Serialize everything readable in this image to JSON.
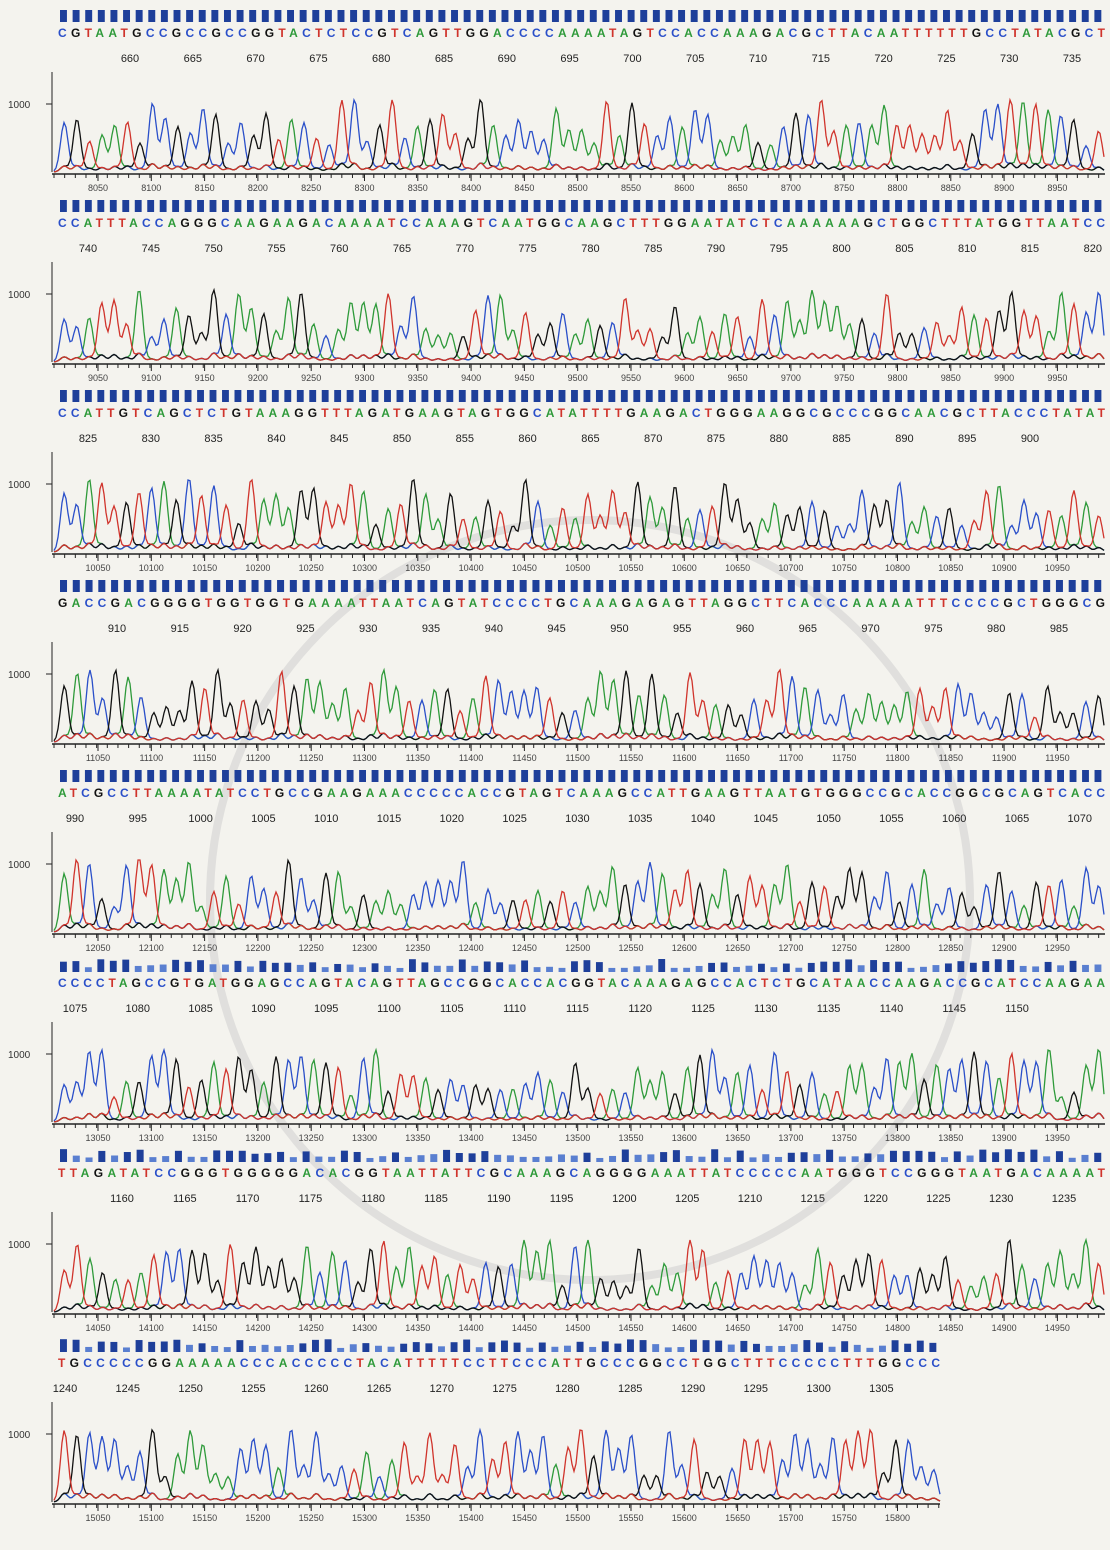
{
  "panels": [
    {
      "sequence": "CGTAATGCCGCCGCCGGTACTCTCCGTCAGTTGGACCCCAAAATAGTCCACCAAAGACGCTTACAATTTTTTGCCTATACGCT",
      "positions": [
        660,
        665,
        670,
        675,
        680,
        685,
        690,
        695,
        700,
        705,
        710,
        715,
        720,
        725,
        730,
        735
      ],
      "y_tick": 1000,
      "scan_ticks": [
        8050,
        8100,
        8150,
        8200,
        8250,
        8300,
        8350,
        8400,
        8450,
        8500,
        8550,
        8600,
        8650,
        8700,
        8750,
        8800,
        8850,
        8900,
        8950
      ]
    },
    {
      "sequence": "CCATTTACCAGGGCAAGAAGACAAAATCCAAAGTCAATGGCAAGCTTTGGAATATCTCAAAAAAGCTGGCTTTATGGTTAATCC",
      "positions": [
        740,
        745,
        750,
        755,
        760,
        765,
        770,
        775,
        780,
        785,
        790,
        795,
        800,
        805,
        810,
        815,
        820
      ],
      "y_tick": 1000,
      "scan_ticks": [
        9050,
        9100,
        9150,
        9200,
        9250,
        9300,
        9350,
        9400,
        9450,
        9500,
        9550,
        9600,
        9650,
        9700,
        9750,
        9800,
        9850,
        9900,
        9950
      ]
    },
    {
      "sequence": "CCATTGTCAGCTCTGTAAAGGTTTAGATGAAGTAGTGGCATATTTTGAAGACTGGGAAGGCGCCCGGCAACGCTTACCCTATAT",
      "positions": [
        825,
        830,
        835,
        840,
        845,
        850,
        855,
        860,
        865,
        870,
        875,
        880,
        885,
        890,
        895,
        900
      ],
      "y_tick": 1000,
      "scan_ticks": [
        10050,
        10100,
        10150,
        10200,
        10250,
        10300,
        10350,
        10400,
        10450,
        10500,
        10550,
        10600,
        10650,
        10700,
        10750,
        10800,
        10850,
        10900,
        10950
      ]
    },
    {
      "sequence": "GACCGACGGGGTGGTGGTGAAAATTAATCAGTATCCCCTGCAAAGAGAGTTAGGCTTCACCCAAAAATTTCCCCGCTGGGCG",
      "positions": [
        910,
        915,
        920,
        925,
        930,
        935,
        940,
        945,
        950,
        955,
        960,
        965,
        970,
        975,
        980,
        985
      ],
      "y_tick": 1000,
      "scan_ticks": [
        11050,
        11100,
        11150,
        11200,
        11250,
        11300,
        11350,
        11400,
        11450,
        11500,
        11550,
        11600,
        11650,
        11700,
        11750,
        11800,
        11850,
        11900,
        11950
      ]
    },
    {
      "sequence": "ATCGCCTTAAAATATCCTGCCGAAGAAACCCCCACCGTAGTCAAAGCCATTGAAGTTAATGTGGGCCGCACCGGCGCAGTCACC",
      "positions": [
        990,
        995,
        1000,
        1005,
        1010,
        1015,
        1020,
        1025,
        1030,
        1035,
        1040,
        1045,
        1050,
        1055,
        1060,
        1065,
        1070
      ],
      "y_tick": 1000,
      "scan_ticks": [
        12050,
        12100,
        12150,
        12200,
        12250,
        12300,
        12350,
        12400,
        12450,
        12500,
        12550,
        12600,
        12650,
        12700,
        12750,
        12800,
        12850,
        12900,
        12950
      ]
    },
    {
      "sequence": "CCCCTAGCCGTGATGGAGCCAGTACAGTTAGCCGGCACCACGGTACAAAGAGCCACTCTGCATAACCAAGACCGCATCCAAGAA",
      "positions": [
        1075,
        1080,
        1085,
        1090,
        1095,
        1100,
        1105,
        1110,
        1115,
        1120,
        1125,
        1130,
        1135,
        1140,
        1145,
        1150
      ],
      "y_tick": 1000,
      "scan_ticks": [
        13050,
        13100,
        13150,
        13200,
        13250,
        13300,
        13350,
        13400,
        13450,
        13500,
        13550,
        13600,
        13650,
        13700,
        13750,
        13800,
        13850,
        13900,
        13950
      ]
    },
    {
      "sequence": "TTAGATATCCGGGTGGGGGACACGGTAATTATTCGCAAAGCAGGGGAAATTATCCCCCAATGGGTCCGGGTAATGACAAAAT",
      "positions": [
        1160,
        1165,
        1170,
        1175,
        1180,
        1185,
        1190,
        1195,
        1200,
        1205,
        1210,
        1215,
        1220,
        1225,
        1230,
        1235
      ],
      "y_tick": 1000,
      "scan_ticks": [
        14050,
        14100,
        14150,
        14200,
        14250,
        14300,
        14350,
        14400,
        14450,
        14500,
        14550,
        14600,
        14650,
        14700,
        14750,
        14800,
        14850,
        14900,
        14950
      ]
    },
    {
      "sequence": "TGCCCCCGGAAAAACCCACCCCCTACATTTTTCCTTCCCATTGCCCGGCCTGGCTTTCCCCCTTTGGCCC",
      "positions": [
        1240,
        1245,
        1250,
        1255,
        1260,
        1265,
        1270,
        1275,
        1280,
        1285,
        1290,
        1295,
        1300,
        1305
      ],
      "y_tick": 1000,
      "scan_ticks": [
        15050,
        15100,
        15150,
        15200,
        15250,
        15300,
        15350,
        15400,
        15450,
        15500,
        15550,
        15600,
        15650,
        15700,
        15750,
        15800
      ]
    }
  ]
}
